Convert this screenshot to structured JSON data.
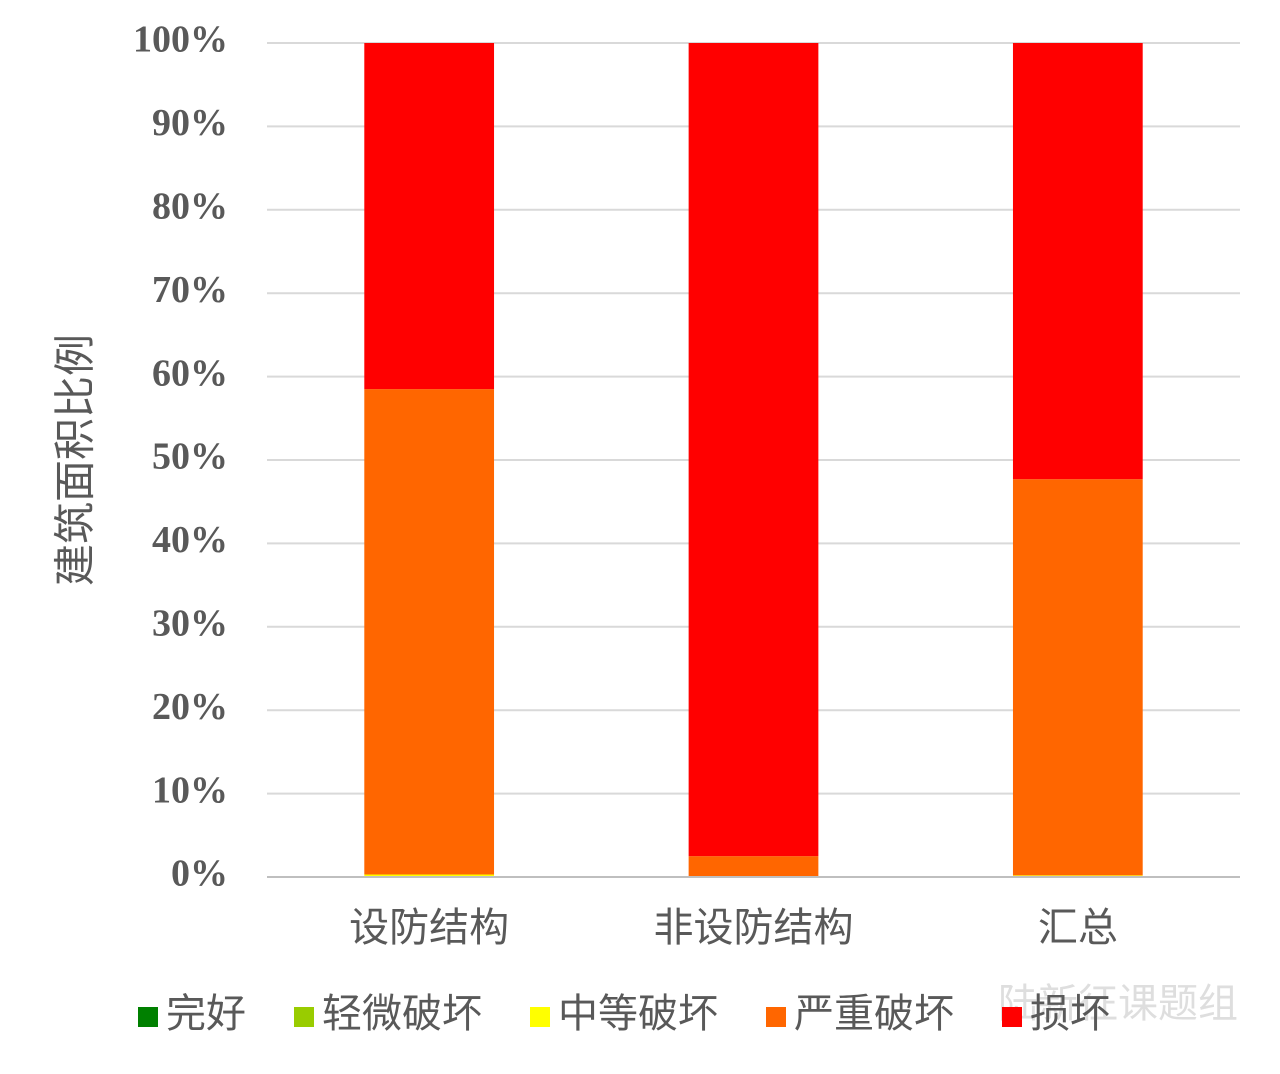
{
  "chart_data": {
    "type": "stacked-bar",
    "y_label": "建筑面积比例",
    "categories": [
      "设防结构",
      "非设防结构",
      "汇总"
    ],
    "series": [
      {
        "name": "完好",
        "color": "#008000",
        "values": [
          0,
          0,
          0
        ]
      },
      {
        "name": "轻微破坏",
        "color": "#99cc00",
        "values": [
          0,
          0,
          0
        ]
      },
      {
        "name": "中等破坏",
        "color": "#ffff00",
        "values": [
          0.3,
          0,
          0.2
        ]
      },
      {
        "name": "严重破坏",
        "color": "#ff6600",
        "values": [
          58.2,
          2.5,
          47.5
        ]
      },
      {
        "name": "损坏",
        "color": "#ff0000",
        "values": [
          41.5,
          97.5,
          52.3
        ]
      }
    ],
    "ylim": [
      0,
      100
    ],
    "yticks": [
      {
        "value": 0,
        "label": "0%"
      },
      {
        "value": 10,
        "label": "10%"
      },
      {
        "value": 20,
        "label": "20%"
      },
      {
        "value": 30,
        "label": "30%"
      },
      {
        "value": 40,
        "label": "40%"
      },
      {
        "value": 50,
        "label": "50%"
      },
      {
        "value": 60,
        "label": "60%"
      },
      {
        "value": 70,
        "label": "70%"
      },
      {
        "value": 80,
        "label": "80%"
      },
      {
        "value": 90,
        "label": "90%"
      },
      {
        "value": 100,
        "label": "100%"
      }
    ],
    "grid": true,
    "legend": "bottom",
    "watermark": "陆新征课题组"
  }
}
